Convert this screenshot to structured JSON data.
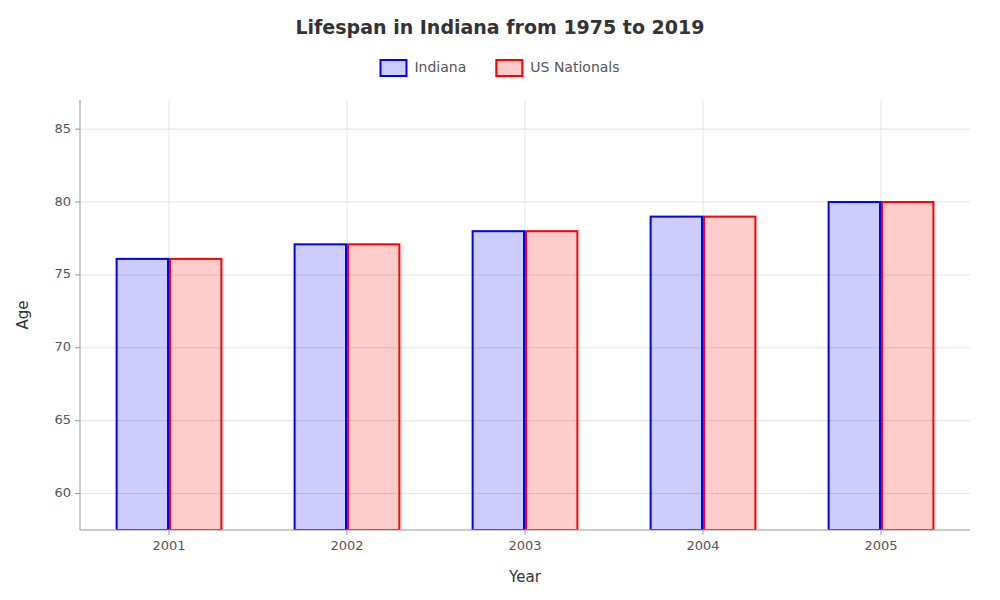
{
  "chart_data": {
    "type": "bar",
    "title": "Lifespan in Indiana from 1975 to 2019",
    "x_label": "Year",
    "y_label": "Age",
    "categories": [
      "2001",
      "2002",
      "2003",
      "2004",
      "2005"
    ],
    "series": [
      {
        "name": "Indiana",
        "color": "#0000ff",
        "values": [
          76.1,
          77.1,
          78.0,
          79.0,
          80.0
        ]
      },
      {
        "name": "US Nationals",
        "color": "#ff0000",
        "values": [
          76.1,
          77.1,
          78.0,
          79.0,
          80.0
        ]
      }
    ],
    "ylim": [
      57.5,
      87
    ],
    "yticks": [
      60,
      65,
      70,
      75,
      80,
      85
    ],
    "grid": true,
    "legend": "top"
  }
}
